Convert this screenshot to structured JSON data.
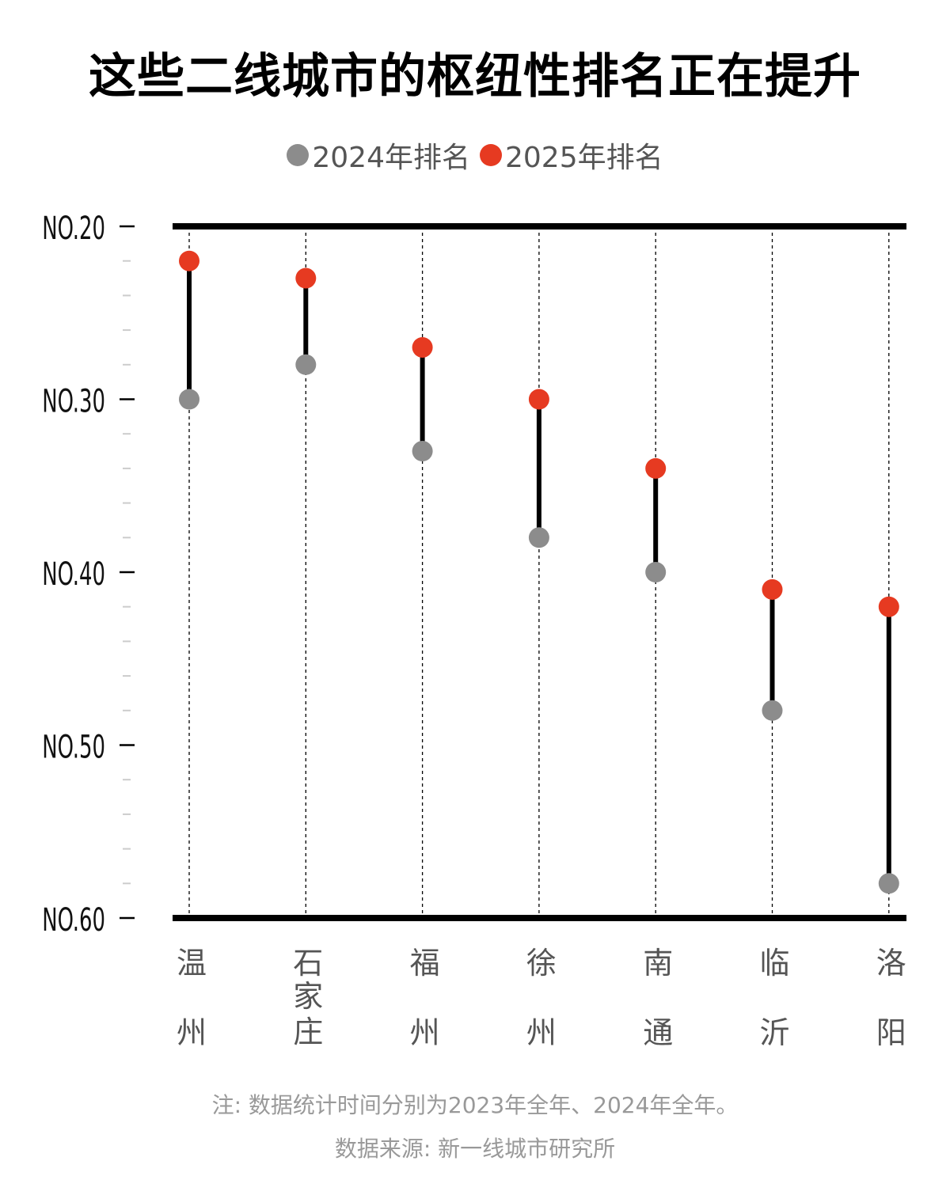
{
  "title": "这些二线城市的枢纽性排名正在提升",
  "legend": [
    {
      "label": "2024年排名",
      "color": "#8c8c8c"
    },
    {
      "label": "2025年排名",
      "color": "#e63a21"
    }
  ],
  "notes": {
    "note": "注: 数据统计时间分别为2023年全年、2024年全年。",
    "source": "数据来源: 新一线城市研究所"
  },
  "chart_data": {
    "type": "dumbbell",
    "title": "这些二线城市的枢纽性排名正在提升",
    "categories": [
      "温州",
      "石家庄",
      "福州",
      "徐州",
      "南通",
      "临沂",
      "洛阳"
    ],
    "category_labels": [
      [
        "温",
        "州"
      ],
      [
        "石",
        "家",
        "庄"
      ],
      [
        "福",
        "州"
      ],
      [
        "徐",
        "州"
      ],
      [
        "南",
        "通"
      ],
      [
        "临",
        "沂"
      ],
      [
        "洛",
        "阳"
      ]
    ],
    "series": [
      {
        "name": "2024年排名",
        "color": "#8c8c8c",
        "values": [
          30,
          28,
          33,
          38,
          40,
          48,
          58
        ]
      },
      {
        "name": "2025年排名",
        "color": "#e63a21",
        "values": [
          22,
          23,
          27,
          30,
          34,
          41,
          42
        ]
      }
    ],
    "y_ticks": [
      20,
      30,
      40,
      50,
      60
    ],
    "y_tick_labels": [
      "NO.20",
      "NO.30",
      "NO.40",
      "NO.50",
      "NO.60"
    ],
    "ylim": [
      20,
      60
    ],
    "y_inverted": true,
    "grid": "vertical-dashed",
    "legend_position": "top-center"
  }
}
